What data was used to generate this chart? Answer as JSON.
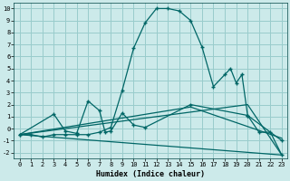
{
  "xlabel": "Humidex (Indice chaleur)",
  "bg_color": "#cceaea",
  "grid_color": "#99cccc",
  "line_color": "#006666",
  "xlim": [
    -0.5,
    23.5
  ],
  "ylim": [
    -2.5,
    10.5
  ],
  "xticks": [
    0,
    1,
    2,
    3,
    4,
    5,
    6,
    7,
    8,
    9,
    10,
    11,
    12,
    13,
    14,
    15,
    16,
    17,
    18,
    19,
    20,
    21,
    22,
    23
  ],
  "yticks": [
    -2,
    -1,
    0,
    1,
    2,
    3,
    4,
    5,
    6,
    7,
    8,
    9,
    10
  ],
  "series_main": [
    [
      0,
      -0.5
    ],
    [
      1,
      -0.5
    ],
    [
      2,
      -0.7
    ],
    [
      3,
      -0.5
    ],
    [
      4,
      -0.5
    ],
    [
      5,
      -0.5
    ],
    [
      6,
      -0.5
    ],
    [
      7,
      -0.3
    ],
    [
      8,
      0.1
    ],
    [
      9,
      3.2
    ],
    [
      10,
      6.7
    ],
    [
      11,
      8.8
    ],
    [
      12,
      10.0
    ],
    [
      13,
      10.0
    ],
    [
      14,
      9.8
    ],
    [
      15,
      9.0
    ],
    [
      16,
      6.8
    ],
    [
      17,
      3.5
    ],
    [
      18,
      4.5
    ],
    [
      18.5,
      5.0
    ],
    [
      19,
      3.8
    ],
    [
      19.5,
      4.5
    ],
    [
      20,
      1.1
    ],
    [
      21,
      -0.3
    ],
    [
      22,
      -0.3
    ],
    [
      23,
      -2.2
    ]
  ],
  "series_zigzag": [
    [
      0,
      -0.5
    ],
    [
      3,
      1.2
    ],
    [
      4,
      -0.2
    ],
    [
      5,
      -0.4
    ],
    [
      6,
      2.3
    ],
    [
      7,
      1.5
    ],
    [
      7.5,
      -0.3
    ],
    [
      8,
      -0.2
    ],
    [
      9,
      1.3
    ],
    [
      10,
      0.3
    ],
    [
      11,
      0.1
    ],
    [
      15,
      2.0
    ],
    [
      20,
      1.1
    ],
    [
      23,
      -1.0
    ]
  ],
  "series_low1": [
    [
      0,
      -0.5
    ],
    [
      23,
      -2.2
    ]
  ],
  "series_low2": [
    [
      0,
      -0.5
    ],
    [
      15,
      1.8
    ],
    [
      23,
      -0.8
    ]
  ],
  "series_low3": [
    [
      0,
      -0.5
    ],
    [
      20,
      2.0
    ],
    [
      23,
      -2.2
    ]
  ]
}
